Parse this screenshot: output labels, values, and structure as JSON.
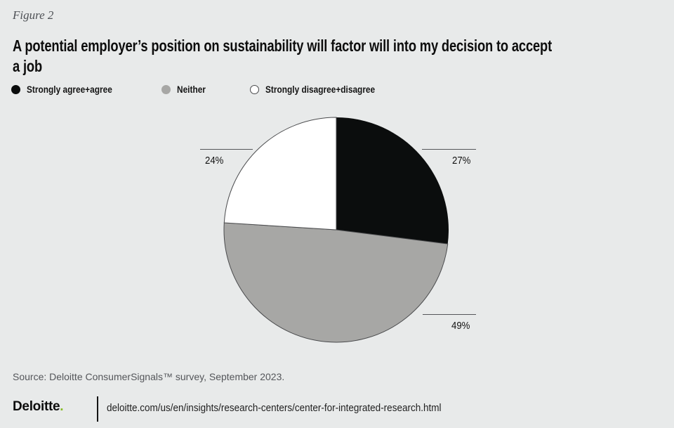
{
  "figure_label": "Figure 2",
  "title": {
    "line1": "A potential employer’s position on sustainability will factor will into my decision to accept",
    "line2": "a job"
  },
  "legend": [
    {
      "label": "Strongly agree+agree",
      "color": "#0b0d0d",
      "border": "#0b0d0d"
    },
    {
      "label": "Neither",
      "color": "#a7a7a5",
      "border": "#a7a7a5"
    },
    {
      "label": "Strongly disagree+disagree",
      "color": "#ffffff",
      "border": "#4a4b4d"
    }
  ],
  "chart_data": {
    "type": "pie",
    "title": "A potential employer’s position on sustainability will factor will into my decision to accept a job",
    "start_angle_deg": 0,
    "direction": "clockwise",
    "total": 100,
    "legend_position": "top",
    "slices": [
      {
        "id": "strongly-agree-agree",
        "label": "Strongly agree+agree",
        "value": 27,
        "display": "27%",
        "color": "#0b0d0d",
        "stroke": null
      },
      {
        "id": "neither",
        "label": "Neither",
        "value": 49,
        "display": "49%",
        "color": "#a7a7a5",
        "stroke": "#4a4b4d"
      },
      {
        "id": "strongly-disagree-disagree",
        "label": "Strongly disagree+disagree",
        "value": 24,
        "display": "24%",
        "color": "#ffffff",
        "stroke": "#4a4b4d"
      }
    ]
  },
  "source": "Source: Deloitte ConsumerSignals™ survey, September 2023.",
  "footer": {
    "logo_text": "Deloitte",
    "logo_dot": ".",
    "logo_dot_color": "#86bc25",
    "url": "deloitte.com/us/en/insights/research-centers/center-for-integrated-research.html"
  },
  "colors": {
    "background": "#e8eaea",
    "callout_line": "#55565a",
    "accent_green": "#86bc25"
  }
}
